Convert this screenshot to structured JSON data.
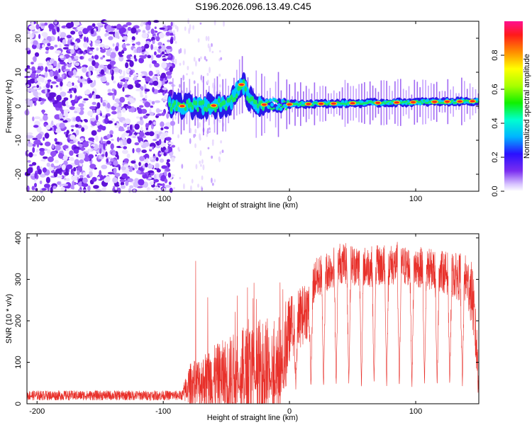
{
  "title": "S196.2026.096.13.49.C45",
  "colors": {
    "spectrogram_low": "#e8d8ff",
    "spectrogram_mid": "#6a20e0",
    "snr_line": "#e8302a",
    "axis": "#000000"
  },
  "chart_data": [
    {
      "type": "heatmap",
      "name": "spectrogram",
      "xlabel": "Height of straight line (km)",
      "ylabel": "Frequency (Hz)",
      "xlim": [
        -208,
        150
      ],
      "ylim": [
        -25,
        25
      ],
      "xticks": [
        -200,
        -100,
        0,
        100
      ],
      "yticks": [
        -20,
        -10,
        0,
        10,
        20
      ],
      "ridge": {
        "start_km": -95,
        "end_km": 150,
        "center_hz_start": 0,
        "center_hz_end": 1.5,
        "bump_km": -38,
        "bump_hz": 6,
        "hot_spots_km": [
          -85,
          -60,
          -38,
          -20,
          0,
          15,
          25,
          35,
          50,
          70,
          85,
          98,
          115,
          125,
          135,
          145
        ]
      },
      "noise_region_km": [
        -208,
        -92
      ],
      "colorbar": {
        "label": "Normalized spectral amplitude",
        "ticks": [
          0.0,
          0.2,
          0.4,
          0.6,
          0.8
        ],
        "tick_labels": [
          "0.0",
          "0.2",
          "0.4",
          "0.6",
          "0.8"
        ],
        "range": [
          0,
          1
        ]
      }
    },
    {
      "type": "line",
      "name": "snr",
      "xlabel": "Height of straight line (km)",
      "ylabel": "SNR (10 * v/v)",
      "xlim": [
        -208,
        150
      ],
      "ylim": [
        0,
        410
      ],
      "xticks": [
        -200,
        -100,
        0,
        100
      ],
      "yticks": [
        0,
        100,
        200,
        300,
        400
      ],
      "envelope": {
        "x": [
          -208,
          -85,
          -80,
          -60,
          -40,
          -20,
          -5,
          0,
          15,
          20,
          30,
          40,
          60,
          80,
          100,
          120,
          140,
          145,
          150
        ],
        "base": [
          20,
          20,
          45,
          60,
          70,
          80,
          100,
          180,
          230,
          300,
          320,
          340,
          330,
          335,
          330,
          320,
          300,
          260,
          60
        ],
        "noise_amp": [
          12,
          12,
          50,
          80,
          110,
          130,
          120,
          80,
          70,
          50,
          50,
          50,
          50,
          50,
          50,
          50,
          60,
          80,
          60
        ]
      },
      "dips_km": [
        -40,
        -27,
        -15,
        -5,
        5,
        17,
        27,
        37,
        47,
        57,
        67,
        77,
        87,
        97,
        107,
        117,
        127,
        137
      ],
      "dip_level": 30
    }
  ]
}
